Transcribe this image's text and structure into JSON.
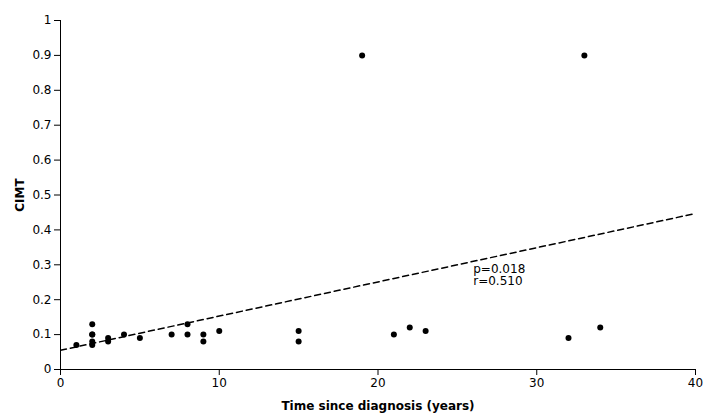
{
  "chart_data": {
    "type": "scatter",
    "x": [
      1,
      2,
      2,
      2,
      2,
      2,
      3,
      3,
      4,
      5,
      7,
      8,
      8,
      9,
      9,
      10,
      15,
      15,
      19,
      21,
      22,
      23,
      32,
      33,
      34
    ],
    "values": [
      0.07,
      0.07,
      0.08,
      0.1,
      0.1,
      0.13,
      0.08,
      0.09,
      0.1,
      0.09,
      0.1,
      0.1,
      0.13,
      0.08,
      0.1,
      0.11,
      0.08,
      0.11,
      0.9,
      0.1,
      0.12,
      0.11,
      0.09,
      0.9,
      0.12
    ],
    "color": "#000000",
    "marker": "circle",
    "regression": {
      "x": [
        0,
        40
      ],
      "y": [
        0.055,
        0.447
      ],
      "color": "#000000",
      "line_style": "dashed"
    },
    "xlabel": "Time since diagnosis (years)",
    "ylabel": "CIMT",
    "xlim": [
      0,
      40
    ],
    "ylim": [
      0,
      1
    ],
    "xticks": [
      0,
      10,
      20,
      30,
      40
    ],
    "yticks": [
      0,
      0.1,
      0.2,
      0.3,
      0.4,
      0.5,
      0.6,
      0.7,
      0.8,
      0.9,
      1
    ],
    "annotations": [
      {
        "text": "p=0.018\nr=0.510",
        "x": 26,
        "y": 0.27
      }
    ],
    "grid": false
  }
}
